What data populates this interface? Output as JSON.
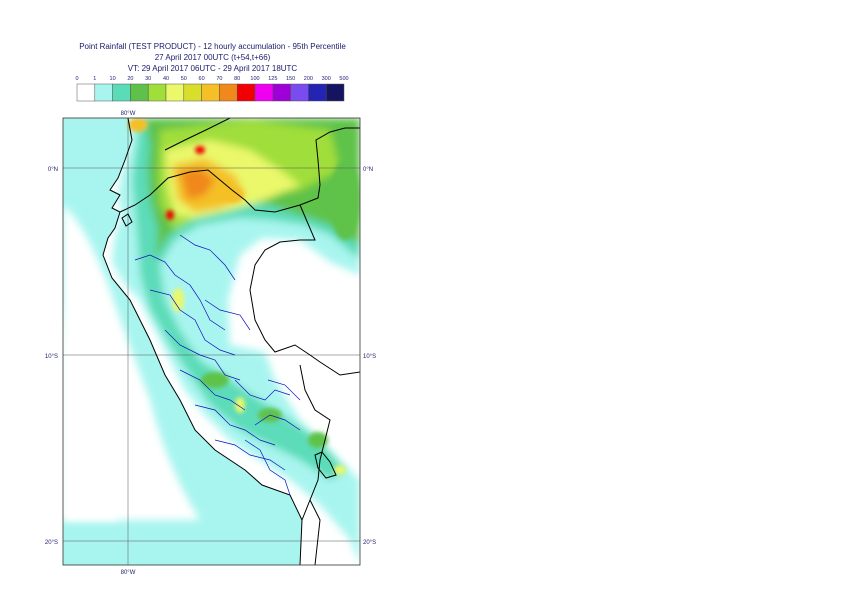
{
  "title": {
    "line1": "Point Rainfall (TEST PRODUCT) - 12 hourly accumulation - 95th Percentile",
    "line2": "27 April 2017 00UTC (t+54,t+66)",
    "line3": "VT: 29 April 2017 06UTC - 29 April 2017 18UTC"
  },
  "legend": {
    "ticks": [
      "0",
      "1",
      "10",
      "20",
      "30",
      "40",
      "50",
      "60",
      "70",
      "80",
      "100",
      "125",
      "150",
      "200",
      "300",
      "500"
    ],
    "colors": [
      "#ffffff",
      "#a8f5ef",
      "#5bdcb8",
      "#5ec24a",
      "#a0de3a",
      "#eaf86a",
      "#d8de2a",
      "#f4c026",
      "#f0881c",
      "#f00000",
      "#f000f0",
      "#a000d8",
      "#7a4cf0",
      "#2424b4",
      "#141460"
    ]
  },
  "map": {
    "lat_labels": {
      "north": "0°N",
      "s10": "10°S",
      "s20": "20°S"
    },
    "lon_label": "80°W",
    "colors": {
      "ocean": "#a8f5ef",
      "land_dry": "#ffffff",
      "light_rain": "#a8f5ef",
      "moderate": "#5bdcb8",
      "heavy": "#5ec24a",
      "very_heavy": "#a0de3a",
      "yellow": "#eaf86a",
      "orange": "#f4c026",
      "dark_orange": "#f0881c",
      "red": "#f00000",
      "borders": "#000000",
      "admin": "#1010c0",
      "grid": "#555555"
    }
  }
}
